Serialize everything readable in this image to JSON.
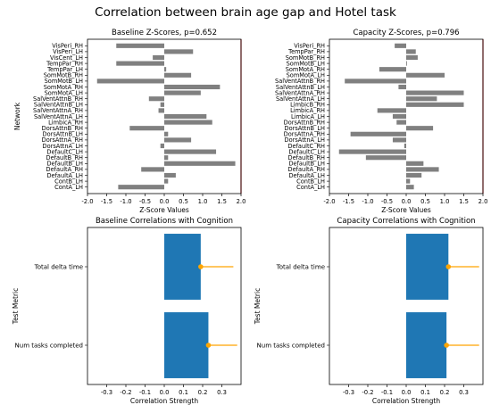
{
  "figure": {
    "title": "Correlation between brain age gap and Hotel task",
    "colors": {
      "bar_gray": "#808080",
      "bar_blue": "#1f77b4",
      "err_orange": "#ffa500",
      "vline_red": "#d62728"
    }
  },
  "chart_data": [
    {
      "type": "bar",
      "orientation": "horizontal",
      "title": "Baseline Z-Scores, p=0.652",
      "xlabel": "Z-Score Values",
      "ylabel": "Network",
      "xlim": [
        -2.0,
        2.0
      ],
      "xticks": [
        "-2.0",
        "-1.5",
        "-1.0",
        "-0.5",
        "0.0",
        "0.5",
        "1.0",
        "1.5",
        "2.0"
      ],
      "xtick_values": [
        -2.0,
        -1.5,
        -1.0,
        -0.5,
        0.0,
        0.5,
        1.0,
        1.5,
        2.0
      ],
      "reference_line": 2.0,
      "categories": [
        "VisPeri_RH",
        "VisPeri_LH",
        "VisCent_LH",
        "TempPar_RH",
        "TempPar_LH",
        "SomMotB_RH",
        "SomMotB_LH",
        "SomMotA_RH",
        "SomMotA_LH",
        "SalVentAttnB_RH",
        "SalVentAttnB_LH",
        "SalVentAttnA_RH",
        "SalVentAttnA_LH",
        "LimbicA_RH",
        "DorsAttnB_RH",
        "DorsAttnB_LH",
        "DorsAttnA_RH",
        "DorsAttnA_LH",
        "DefaultC_LH",
        "DefaultB_RH",
        "DefaultB_LH",
        "DefaultA_RH",
        "DefaultA_LH",
        "ContB_LH",
        "ContA_LH"
      ],
      "values": [
        -1.25,
        0.75,
        -0.3,
        -1.25,
        0.05,
        0.7,
        -1.75,
        1.45,
        0.95,
        -0.4,
        -0.1,
        -0.15,
        1.1,
        1.25,
        -0.9,
        0.1,
        0.7,
        -0.1,
        1.35,
        0.1,
        1.85,
        -0.6,
        0.3,
        0.1,
        -1.2
      ]
    },
    {
      "type": "bar",
      "orientation": "horizontal",
      "title": "Capacity Z-Scores, p=0.796",
      "xlabel": "Z-Score Values",
      "ylabel": "",
      "xlim": [
        -2.0,
        2.0
      ],
      "xticks": [
        "-2.0",
        "-1.5",
        "-1.0",
        "-0.5",
        "0.0",
        "0.5",
        "1.0",
        "1.5",
        "2.0"
      ],
      "xtick_values": [
        -2.0,
        -1.5,
        -1.0,
        -0.5,
        0.0,
        0.5,
        1.0,
        1.5,
        2.0
      ],
      "reference_line": 2.0,
      "categories": [
        "VisPeri_RH",
        "TempPar_RH",
        "SomMotB_RH",
        "SomMotB_LH",
        "SomMotA_RH",
        "SomMotA_LH",
        "SalVentAttnB_RH",
        "SalVentAttnB_LH",
        "SalVentAttnA_RH",
        "SalVentAttnA_LH",
        "LimbicB_RH",
        "LimbicA_RH",
        "LimbicA_LH",
        "DorsAttnB_RH",
        "DorsAttnB_LH",
        "DorsAttnA_RH",
        "DorsAttnA_LH",
        "DefaultC_RH",
        "DefaultC_LH",
        "DefaultB_RH",
        "DefaultB_LH",
        "DefaultA_RH",
        "DefaultA_LH",
        "ContB_LH",
        "ContA_LH"
      ],
      "values": [
        -0.3,
        0.25,
        0.3,
        0.02,
        -0.7,
        1.0,
        -1.6,
        -0.2,
        1.5,
        0.8,
        1.5,
        -0.75,
        -0.35,
        -0.25,
        0.7,
        -1.45,
        -0.35,
        -0.05,
        -1.75,
        -1.05,
        0.45,
        0.85,
        0.4,
        0.1,
        0.2
      ]
    },
    {
      "type": "bar",
      "orientation": "horizontal",
      "title": "Baseline Correlations with Cognition",
      "xlabel": "Correlation Strength",
      "ylabel": "Test Metric",
      "xlim": [
        -0.4,
        0.4
      ],
      "xticks": [
        "-0.3",
        "-0.2",
        "-0.1",
        "0.0",
        "0.1",
        "0.2",
        "0.3"
      ],
      "xtick_values": [
        -0.3,
        -0.2,
        -0.1,
        0.0,
        0.1,
        0.2,
        0.3
      ],
      "categories": [
        "Total delta time",
        "Num tasks completed"
      ],
      "values": [
        0.19,
        0.23
      ],
      "error_low": [
        0.19,
        0.23
      ],
      "error_high": [
        0.36,
        0.38
      ]
    },
    {
      "type": "bar",
      "orientation": "horizontal",
      "title": "Capacity Correlations with Cognition",
      "xlabel": "Correlation Strength",
      "ylabel": "Test Metric",
      "xlim": [
        -0.4,
        0.4
      ],
      "xticks": [
        "-0.3",
        "-0.2",
        "-0.1",
        "0.0",
        "0.1",
        "0.2",
        "0.3"
      ],
      "xtick_values": [
        -0.3,
        -0.2,
        -0.1,
        0.0,
        0.1,
        0.2,
        0.3
      ],
      "categories": [
        "Total delta time",
        "Num tasks completed"
      ],
      "values": [
        0.22,
        0.21
      ],
      "error_low": [
        0.22,
        0.21
      ],
      "error_high": [
        0.38,
        0.38
      ]
    }
  ]
}
